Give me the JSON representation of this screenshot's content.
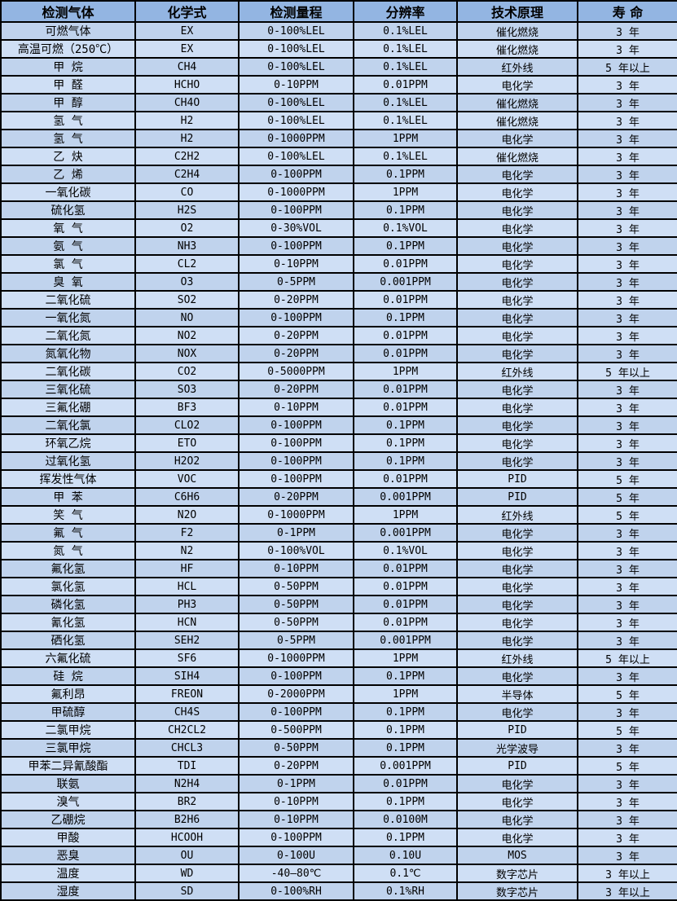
{
  "table": {
    "headers": [
      "检测气体",
      "化学式",
      "检测量程",
      "分辨率",
      "技术原理",
      "寿 命"
    ],
    "rows": [
      [
        "可燃气体",
        "EX",
        "0-100%LEL",
        "0.1%LEL",
        "催化燃烧",
        "3 年"
      ],
      [
        "高温可燃（250℃）",
        "EX",
        "0-100%LEL",
        "0.1%LEL",
        "催化燃烧",
        "3 年"
      ],
      [
        "甲 烷",
        "CH4",
        "0-100%LEL",
        "0.1%LEL",
        "红外线",
        "5 年以上"
      ],
      [
        "甲 醛",
        "HCHO",
        "0-10PPM",
        "0.01PPM",
        "电化学",
        "3 年"
      ],
      [
        "甲 醇",
        "CH4O",
        "0-100%LEL",
        "0.1%LEL",
        "催化燃烧",
        "3 年"
      ],
      [
        "氢 气",
        "H2",
        "0-100%LEL",
        "0.1%LEL",
        "催化燃烧",
        "3 年"
      ],
      [
        "氢 气",
        "H2",
        "0-1000PPM",
        "1PPM",
        "电化学",
        "3 年"
      ],
      [
        "乙 炔",
        "C2H2",
        "0-100%LEL",
        "0.1%LEL",
        "催化燃烧",
        "3 年"
      ],
      [
        "乙 烯",
        "C2H4",
        "0-100PPM",
        "0.1PPM",
        "电化学",
        "3 年"
      ],
      [
        "一氧化碳",
        "CO",
        "0-1000PPM",
        "1PPM",
        "电化学",
        "3 年"
      ],
      [
        "硫化氢",
        "H2S",
        "0-100PPM",
        "0.1PPM",
        "电化学",
        "3 年"
      ],
      [
        "氧 气",
        "O2",
        "0-30%VOL",
        "0.1%VOL",
        "电化学",
        "3 年"
      ],
      [
        "氨 气",
        "NH3",
        "0-100PPM",
        "0.1PPM",
        "电化学",
        "3 年"
      ],
      [
        "氯 气",
        "CL2",
        "0-10PPM",
        "0.01PPM",
        "电化学",
        "3 年"
      ],
      [
        "臭 氧",
        "O3",
        "0-5PPM",
        "0.001PPM",
        "电化学",
        "3 年"
      ],
      [
        "二氧化硫",
        "SO2",
        "0-20PPM",
        "0.01PPM",
        "电化学",
        "3 年"
      ],
      [
        "一氧化氮",
        "NO",
        "0-100PPM",
        "0.1PPM",
        "电化学",
        "3 年"
      ],
      [
        "二氧化氮",
        "NO2",
        "0-20PPM",
        "0.01PPM",
        "电化学",
        "3 年"
      ],
      [
        "氮氧化物",
        "NOX",
        "0-20PPM",
        "0.01PPM",
        "电化学",
        "3 年"
      ],
      [
        "二氧化碳",
        "CO2",
        "0-5000PPM",
        "1PPM",
        "红外线",
        "5 年以上"
      ],
      [
        "三氧化硫",
        "SO3",
        "0-20PPM",
        "0.01PPM",
        "电化学",
        "3 年"
      ],
      [
        "三氟化硼",
        "BF3",
        "0-10PPM",
        "0.01PPM",
        "电化学",
        "3 年"
      ],
      [
        "二氧化氯",
        "CLO2",
        "0-100PPM",
        "0.1PPM",
        "电化学",
        "3 年"
      ],
      [
        "环氧乙烷",
        "ETO",
        "0-100PPM",
        "0.1PPM",
        "电化学",
        "3 年"
      ],
      [
        "过氧化氢",
        "H2O2",
        "0-100PPM",
        "0.1PPM",
        "电化学",
        "3 年"
      ],
      [
        "挥发性气体",
        "VOC",
        "0-100PPM",
        "0.01PPM",
        "PID",
        "5 年"
      ],
      [
        "甲 苯",
        "C6H6",
        "0-20PPM",
        "0.001PPM",
        "PID",
        "5 年"
      ],
      [
        "笑 气",
        "N2O",
        "0-1000PPM",
        "1PPM",
        "红外线",
        "5 年"
      ],
      [
        "氟 气",
        "F2",
        "0-1PPM",
        "0.001PPM",
        "电化学",
        "3 年"
      ],
      [
        "氮 气",
        "N2",
        "0-100%VOL",
        "0.1%VOL",
        "电化学",
        "3 年"
      ],
      [
        "氟化氢",
        "HF",
        "0-10PPM",
        "0.01PPM",
        "电化学",
        "3 年"
      ],
      [
        "氯化氢",
        "HCL",
        "0-50PPM",
        "0.01PPM",
        "电化学",
        "3 年"
      ],
      [
        "磷化氢",
        "PH3",
        "0-50PPM",
        "0.01PPM",
        "电化学",
        "3 年"
      ],
      [
        "氰化氢",
        "HCN",
        "0-50PPM",
        "0.01PPM",
        "电化学",
        "3 年"
      ],
      [
        "硒化氢",
        "SEH2",
        "0-5PPM",
        "0.001PPM",
        "电化学",
        "3 年"
      ],
      [
        "六氟化硫",
        "SF6",
        "0-1000PPM",
        "1PPM",
        "红外线",
        "5 年以上"
      ],
      [
        "硅 烷",
        "SIH4",
        "0-100PPM",
        "0.1PPM",
        "电化学",
        "3 年"
      ],
      [
        "氟利昂",
        "FREON",
        "0-2000PPM",
        "1PPM",
        "半导体",
        "5 年"
      ],
      [
        "甲硫醇",
        "CH4S",
        "0-100PPM",
        "0.1PPM",
        "电化学",
        "3 年"
      ],
      [
        "二氯甲烷",
        "CH2CL2",
        "0-500PPM",
        "0.1PPM",
        "PID",
        "5 年"
      ],
      [
        "三氯甲烷",
        "CHCL3",
        "0-50PPM",
        "0.1PPM",
        "光学波导",
        "3 年"
      ],
      [
        "甲苯二异氰酸酯",
        "TDI",
        "0-20PPM",
        "0.001PPM",
        "PID",
        "5 年"
      ],
      [
        "联氨",
        "N2H4",
        "0-1PPM",
        "0.01PPM",
        "电化学",
        "3 年"
      ],
      [
        "溴气",
        "BR2",
        "0-10PPM",
        "0.1PPM",
        "电化学",
        "3 年"
      ],
      [
        "乙硼烷",
        "B2H6",
        "0-10PPM",
        "0.0100M",
        "电化学",
        "3 年"
      ],
      [
        "甲酸",
        "HCOOH",
        "0-100PPM",
        "0.1PPM",
        "电化学",
        "3 年"
      ],
      [
        "恶臭",
        "OU",
        "0-100U",
        "0.10U",
        "MOS",
        "3 年"
      ],
      [
        "温度",
        "WD",
        "-40—80℃",
        "0.1℃",
        "数字芯片",
        "3 年以上"
      ],
      [
        "湿度",
        "SD",
        "0-100%RH",
        "0.1%RH",
        "数字芯片",
        "3 年以上"
      ]
    ]
  },
  "colors": {
    "header_bg": "#93b5e2",
    "row_odd_bg": "#c0d3ed",
    "row_even_bg": "#cfdff5",
    "border": "#000000",
    "text": "#000000"
  }
}
